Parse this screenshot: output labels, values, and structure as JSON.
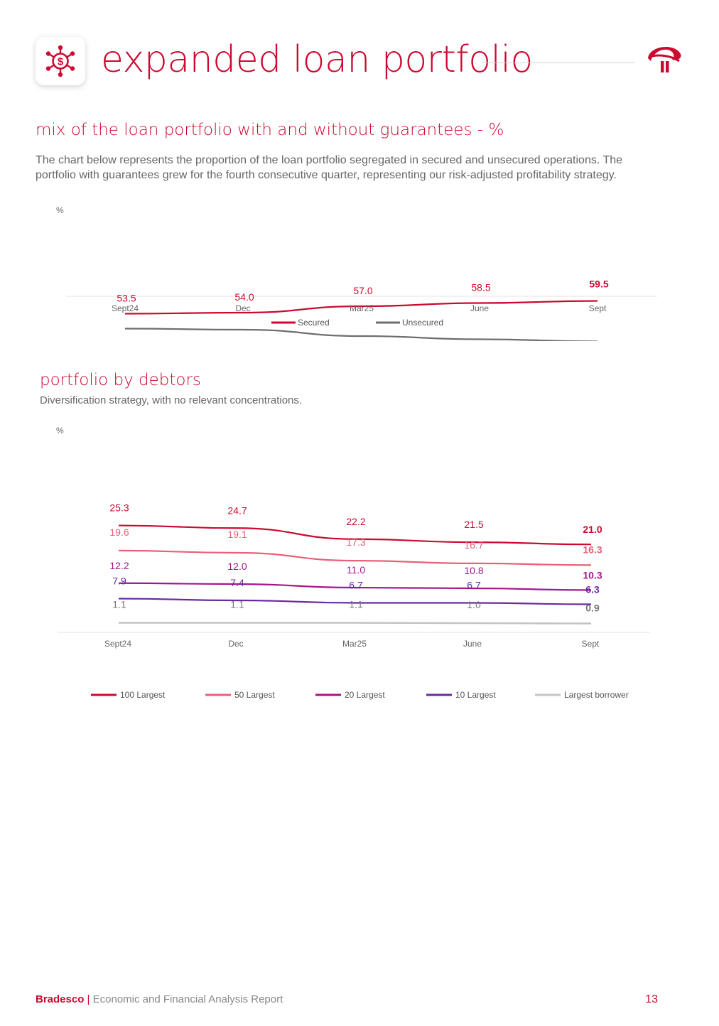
{
  "header": {
    "title": "expanded loan portfolio",
    "icon": "money-network-icon",
    "logo": "bradesco-logo"
  },
  "section1": {
    "title": "mix of the loan portfolio with and without guarantees - %",
    "description": "The chart below represents the proportion of the loan portfolio segregated in secured and unsecured operations. The portfolio with guarantees grew for the fourth consecutive quarter, representing our risk-adjusted profitability strategy.",
    "unit": "%"
  },
  "section2": {
    "title": "portfolio by debtors",
    "description": "Diversification strategy, with no relevant concentrations.",
    "unit": "%"
  },
  "chart_data": [
    {
      "type": "line",
      "categories": [
        "Sept24",
        "Dec",
        "Mar25",
        "June",
        "Sept"
      ],
      "series": [
        {
          "name": "Secured",
          "values": [
            53.5,
            54.0,
            57.0,
            58.5,
            59.5
          ],
          "color": "#cc092f"
        },
        {
          "name": "Unsecured",
          "values": [
            46.5,
            46.0,
            43.0,
            41.5,
            40.5
          ],
          "color": "#6d6e71"
        }
      ],
      "ylabel": "%",
      "legend": "bottom-center",
      "grid": false
    },
    {
      "type": "line",
      "categories": [
        "Sept24",
        "Dec",
        "Mar25",
        "June",
        "Sept"
      ],
      "series": [
        {
          "name": "100 Largest",
          "values": [
            25.3,
            24.7,
            22.2,
            21.5,
            21.0
          ],
          "color": "#cc092f"
        },
        {
          "name": "50 Largest",
          "values": [
            19.6,
            19.1,
            17.3,
            16.7,
            16.3
          ],
          "color": "#e8607a"
        },
        {
          "name": "20 Largest",
          "values": [
            12.2,
            12.0,
            11.0,
            10.8,
            10.3
          ],
          "color": "#a3168c"
        },
        {
          "name": "10 Largest",
          "values": [
            7.9,
            7.4,
            6.7,
            6.7,
            6.3
          ],
          "color": "#6a2aa0"
        },
        {
          "name": "Largest borrower",
          "values": [
            1.1,
            1.1,
            1.1,
            1.0,
            0.9
          ],
          "color": "#c4c4c4"
        }
      ],
      "ylabel": "%",
      "legend": "bottom",
      "grid": false
    }
  ],
  "footer": {
    "brand": "Bradesco",
    "separator": "|",
    "report": "Economic and Financial Analysis Report",
    "page": "13"
  }
}
